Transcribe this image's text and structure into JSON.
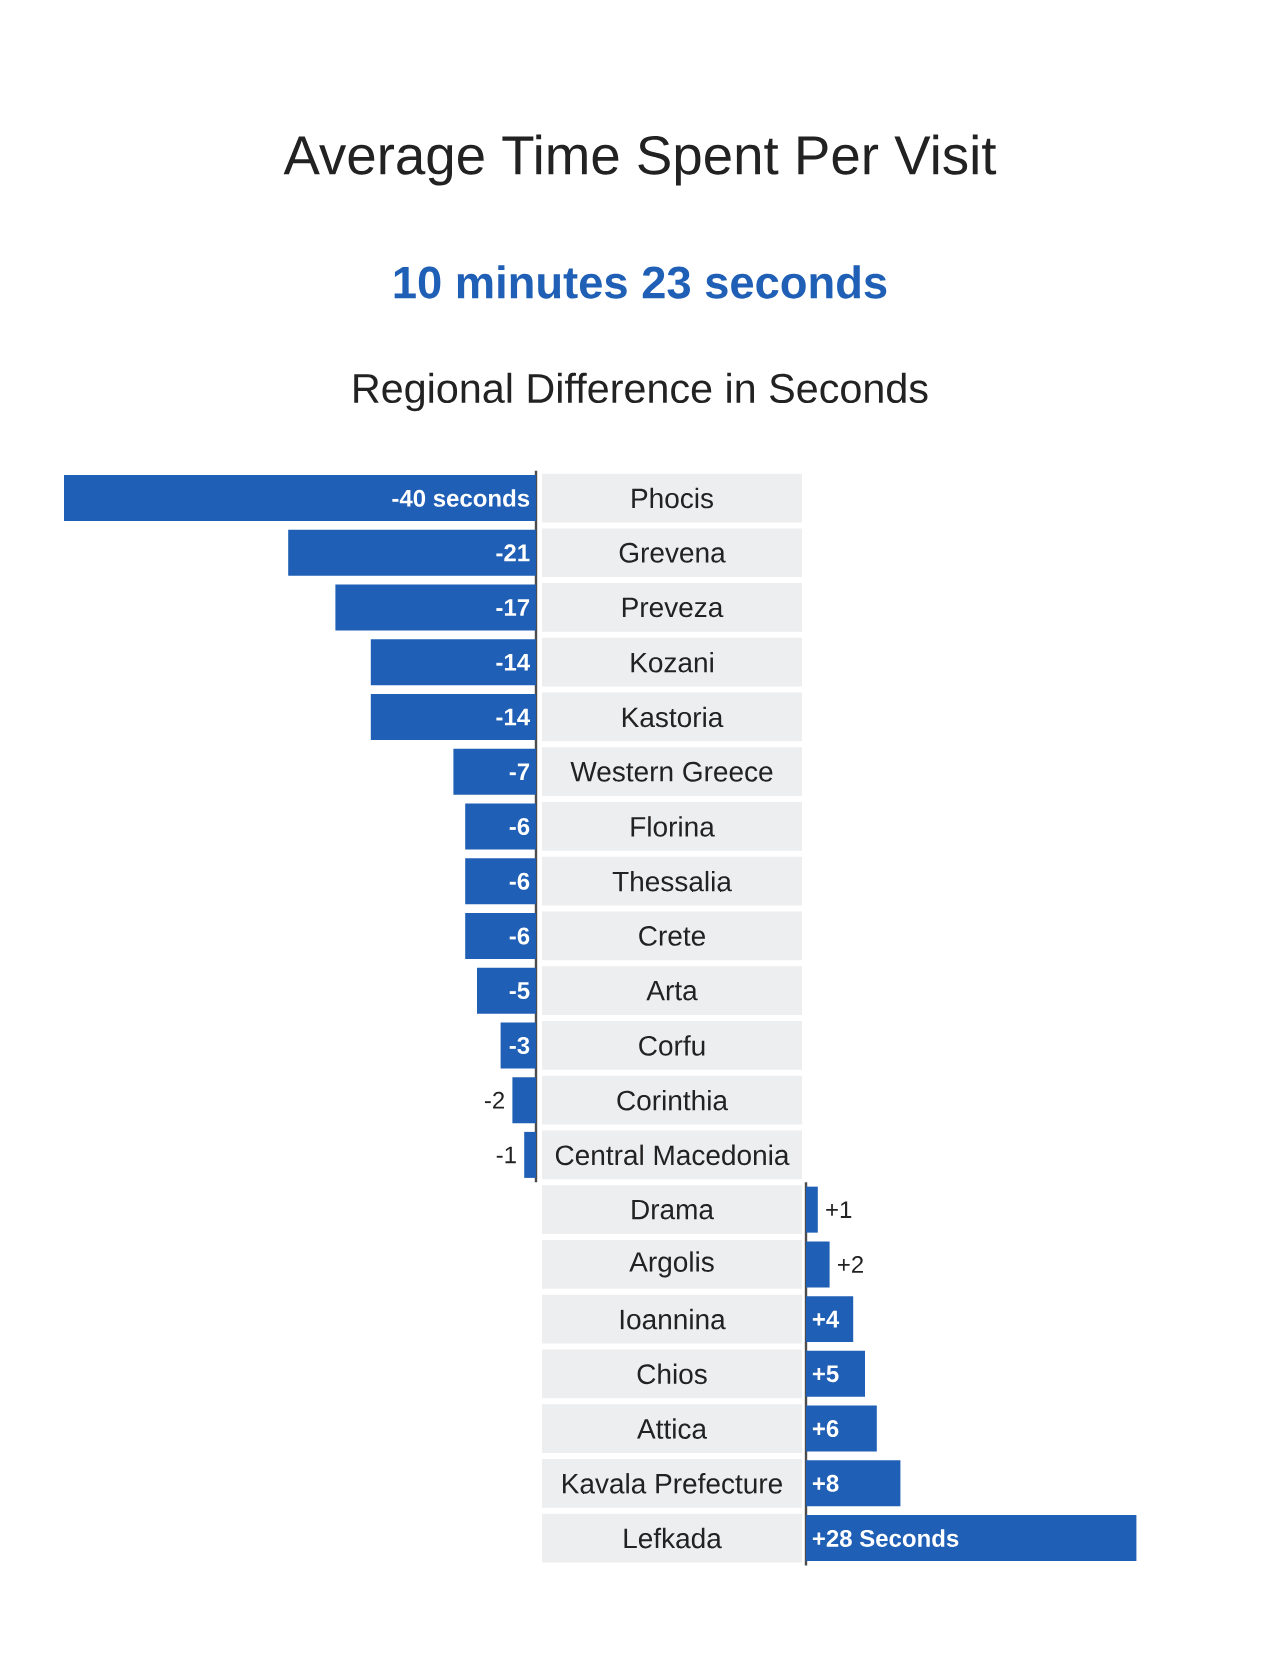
{
  "chart_data": [
    {
      "type": "bar",
      "orientation": "horizontal",
      "title": "Average Time Spent Per Visit",
      "subtitle": "10 minutes 23 seconds",
      "annotations": [
        "Regional Difference in Seconds"
      ],
      "color": "#1f5fb5",
      "categories": [
        "Phocis",
        "Grevena",
        "Preveza",
        "Kozani",
        "Kastoria",
        "Western Greece",
        "Florina",
        "Thessalia",
        "Crete",
        "Arta",
        "Corfu",
        "Corinthia",
        "Central Macedonia"
      ],
      "values": [
        -40,
        -21,
        -17,
        -14,
        -14,
        -7,
        -6,
        -6,
        -6,
        -5,
        -3,
        -2,
        -1
      ],
      "value_labels": [
        "-40 seconds",
        "-21",
        "-17",
        "-14",
        "-14",
        "-7",
        "-6",
        "-6",
        "-6",
        "-5",
        "-3",
        "-2",
        "-1"
      ]
    },
    {
      "type": "bar",
      "orientation": "horizontal",
      "color": "#1f5fb5",
      "categories": [
        "Drama",
        "Argolis",
        "Ioannina",
        "Chios",
        "Attica",
        "Kavala Prefecture",
        "Lefkada"
      ],
      "values": [
        1,
        2,
        4,
        5,
        6,
        8,
        28
      ],
      "value_labels": [
        "+1",
        "+2",
        "+4",
        "+5",
        "+6",
        "+8",
        "+28 Seconds"
      ]
    }
  ]
}
